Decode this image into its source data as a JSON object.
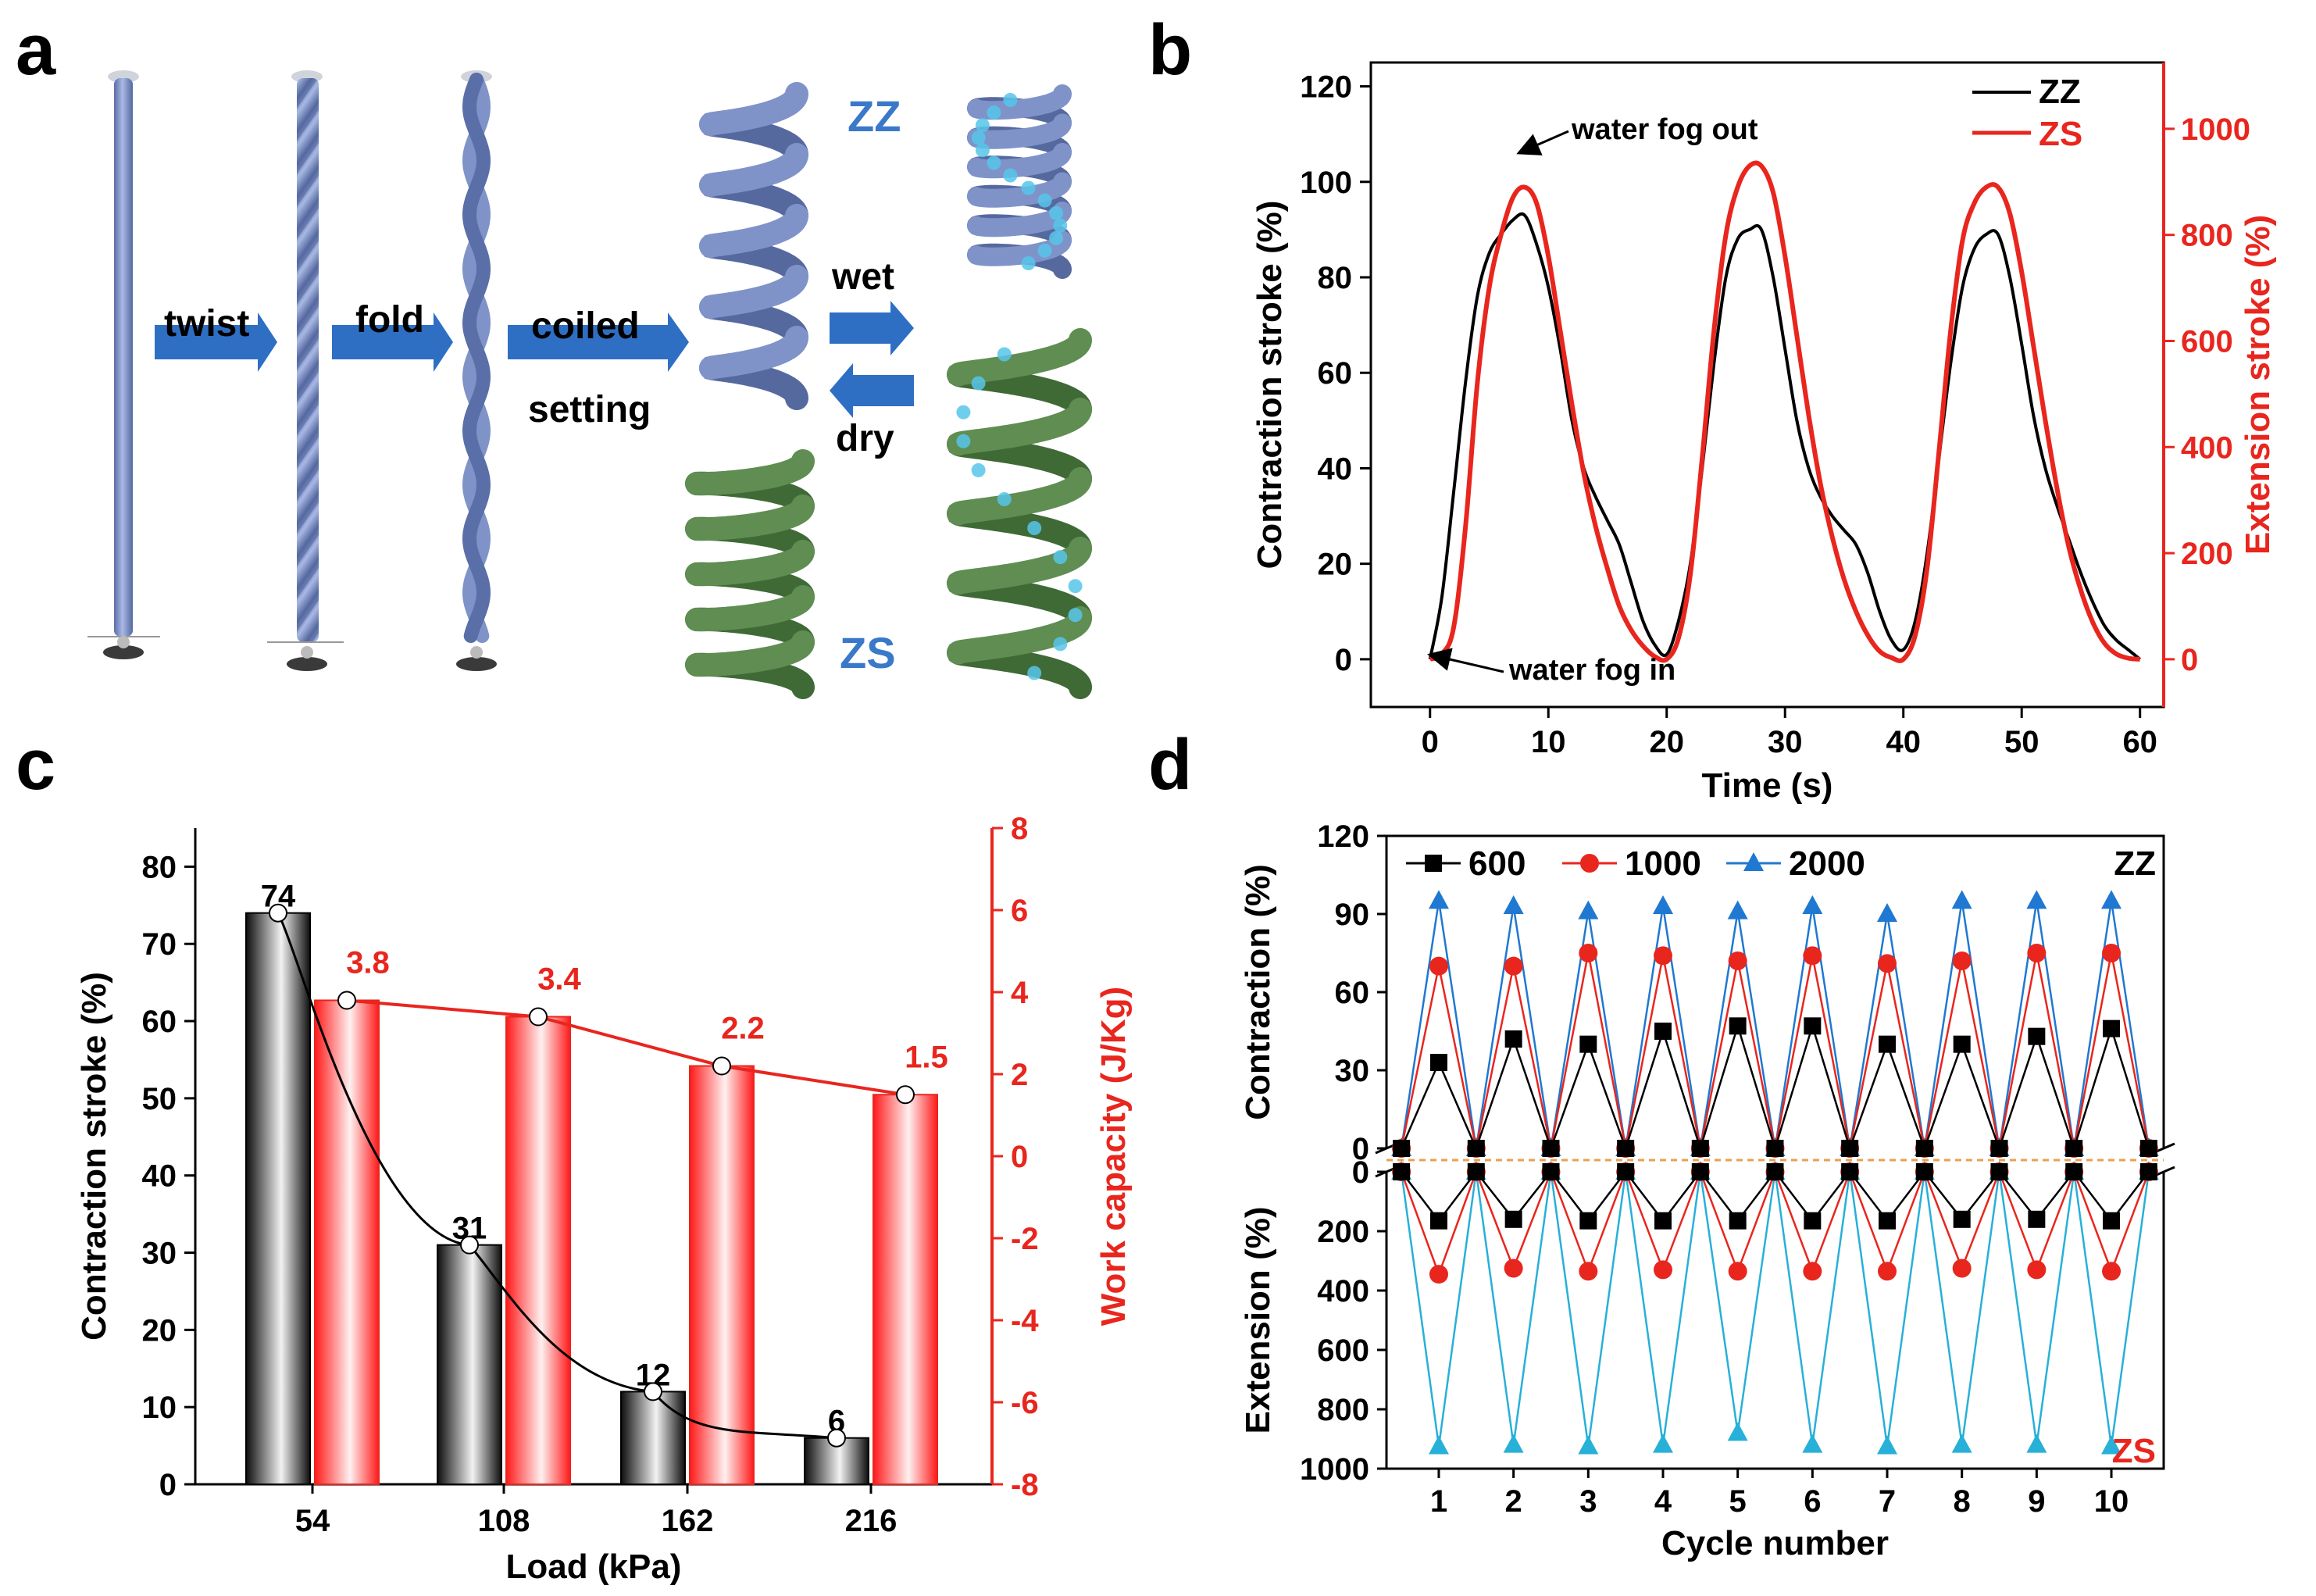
{
  "panel_labels": [
    "a",
    "b",
    "c",
    "d"
  ],
  "schematic": {
    "steps": [
      "twist",
      "fold",
      "coiled",
      "setting"
    ],
    "wet_label": "wet",
    "dry_label": "dry",
    "zz_label": "ZZ",
    "zs_label": "ZS",
    "colors": {
      "fiber": "#7f93c9",
      "zz_coil": "#7f93c9",
      "zs_coil": "#5f8d52",
      "arrow": "#2e6fc4",
      "droplet": "#57c6ea"
    }
  },
  "chart_data": [
    {
      "id": "b",
      "type": "line",
      "xlabel": "Time (s)",
      "ylabel": "Contraction stroke (%)",
      "y2label": "Extension stroke (%)",
      "xlim": [
        -5,
        62
      ],
      "ylim": [
        -10,
        125
      ],
      "y2lim": [
        -90,
        1125
      ],
      "xticks": [
        0,
        10,
        20,
        30,
        40,
        50,
        60
      ],
      "yticks": [
        0,
        20,
        40,
        60,
        80,
        100,
        120
      ],
      "y2ticks": [
        0,
        200,
        400,
        600,
        800,
        1000
      ],
      "annotations": [
        "water fog out",
        "water fog in"
      ],
      "legend_position": "top-right",
      "series": [
        {
          "name": "ZZ",
          "color": "#000000",
          "axis": "left",
          "x": [
            0,
            1,
            2,
            3,
            4,
            5,
            6,
            7,
            8,
            9,
            10,
            11,
            12,
            13,
            14,
            15,
            16,
            17,
            18,
            19,
            20,
            21,
            22,
            23,
            24,
            25,
            26,
            27,
            28,
            29,
            30,
            31,
            32,
            33,
            34,
            35,
            36,
            37,
            38,
            39,
            40,
            41,
            42,
            43,
            44,
            45,
            46,
            47,
            48,
            49,
            50,
            51,
            52,
            53,
            54,
            55,
            56,
            57,
            58,
            59,
            60
          ],
          "y": [
            0,
            13,
            35,
            58,
            76,
            85,
            89,
            92,
            93,
            87,
            78,
            65,
            50,
            40,
            34,
            29,
            24,
            16,
            8,
            3,
            1,
            8,
            20,
            40,
            62,
            80,
            88,
            90,
            90,
            80,
            65,
            50,
            40,
            34,
            30,
            27,
            24,
            18,
            10,
            4,
            2,
            8,
            22,
            42,
            62,
            78,
            86,
            89,
            89,
            80,
            66,
            51,
            40,
            32,
            25,
            18,
            12,
            7,
            4,
            2,
            0
          ]
        },
        {
          "name": "ZS",
          "color": "#e8261e",
          "axis": "right",
          "x": [
            0,
            1,
            2,
            3,
            4,
            5,
            6,
            7,
            8,
            9,
            10,
            11,
            12,
            13,
            14,
            15,
            16,
            17,
            18,
            19,
            20,
            21,
            22,
            23,
            24,
            25,
            26,
            27,
            28,
            29,
            30,
            31,
            32,
            33,
            34,
            35,
            36,
            37,
            38,
            39,
            40,
            41,
            42,
            43,
            44,
            45,
            46,
            47,
            48,
            49,
            50,
            51,
            52,
            53,
            54,
            55,
            56,
            57,
            58,
            59,
            60
          ],
          "y": [
            0,
            10,
            60,
            250,
            520,
            700,
            800,
            870,
            890,
            860,
            760,
            620,
            480,
            350,
            250,
            170,
            100,
            55,
            25,
            5,
            0,
            40,
            160,
            380,
            620,
            800,
            890,
            930,
            930,
            880,
            760,
            610,
            460,
            330,
            230,
            150,
            90,
            45,
            15,
            3,
            0,
            45,
            170,
            390,
            620,
            790,
            860,
            890,
            890,
            840,
            730,
            590,
            450,
            320,
            210,
            130,
            70,
            30,
            10,
            2,
            0
          ]
        }
      ]
    },
    {
      "id": "c",
      "type": "bar",
      "xlabel": "Load (kPa)",
      "ylabel": "Contraction stroke (%)",
      "y2label": "Work capacity (J/Kg)",
      "categories": [
        "54",
        "108",
        "162",
        "216"
      ],
      "ylim": [
        0,
        85
      ],
      "y2lim": [
        -8,
        8
      ],
      "yticks": [
        0,
        10,
        20,
        30,
        40,
        50,
        60,
        70,
        80
      ],
      "y2ticks": [
        -8,
        -6,
        -4,
        -2,
        0,
        2,
        4,
        6,
        8
      ],
      "series": [
        {
          "name": "Contraction stroke",
          "axis": "left",
          "color": "#000000",
          "values": [
            74,
            31,
            12,
            6
          ],
          "labels": [
            "74",
            "31",
            "12",
            "6"
          ]
        },
        {
          "name": "Work capacity",
          "axis": "right",
          "color": "#e8261e",
          "values": [
            3.8,
            3.4,
            2.2,
            1.5
          ],
          "labels": [
            "3.8",
            "3.4",
            "2.2",
            "1.5"
          ]
        }
      ]
    },
    {
      "id": "d",
      "type": "line",
      "xlabel": "Cycle number",
      "ylabel_top": "Contraction (%)",
      "ylabel_bottom": "Extension (%)",
      "xlim": [
        0.3,
        10.7
      ],
      "ylim_top": [
        0,
        120
      ],
      "ylim_bottom": [
        1000,
        0
      ],
      "xticks": [
        1,
        2,
        3,
        4,
        5,
        6,
        7,
        8,
        9,
        10
      ],
      "yticks_top": [
        0,
        30,
        60,
        90,
        120
      ],
      "yticks_bottom": [
        0,
        200,
        400,
        600,
        800,
        1000
      ],
      "tag_top": "ZZ",
      "tag_bottom": "ZS",
      "legend_position": "top",
      "x": [
        0.5,
        1,
        1.5,
        2,
        2.5,
        3,
        3.5,
        4,
        4.5,
        5,
        5.5,
        6,
        6.5,
        7,
        7.5,
        8,
        8.5,
        9,
        9.5,
        10,
        10.5
      ],
      "series_top": [
        {
          "name": "600",
          "color": "#000000",
          "marker": "square",
          "y": [
            0,
            33,
            0,
            42,
            0,
            40,
            0,
            45,
            0,
            47,
            0,
            47,
            0,
            40,
            0,
            40,
            0,
            43,
            0,
            46,
            0
          ]
        },
        {
          "name": "1000",
          "color": "#e8261e",
          "marker": "circle",
          "y": [
            0,
            70,
            0,
            70,
            0,
            75,
            0,
            74,
            0,
            72,
            0,
            74,
            0,
            71,
            0,
            72,
            0,
            75,
            0,
            75,
            0
          ]
        },
        {
          "name": "2000",
          "color": "#1f78d1",
          "marker": "triangle",
          "y": [
            0,
            95,
            0,
            93,
            0,
            91,
            0,
            93,
            0,
            91,
            0,
            93,
            0,
            90,
            0,
            95,
            0,
            95,
            0,
            95,
            0
          ]
        }
      ],
      "series_bottom": [
        {
          "name": "600",
          "color": "#000000",
          "marker": "square",
          "y": [
            0,
            165,
            0,
            160,
            0,
            165,
            0,
            165,
            0,
            165,
            0,
            165,
            0,
            165,
            0,
            160,
            0,
            160,
            0,
            165,
            0
          ]
        },
        {
          "name": "1000",
          "color": "#e8261e",
          "marker": "circle",
          "y": [
            0,
            345,
            0,
            325,
            0,
            335,
            0,
            330,
            0,
            335,
            0,
            335,
            0,
            335,
            0,
            325,
            0,
            330,
            0,
            335,
            0
          ]
        },
        {
          "name": "2000",
          "color": "#27b0d8",
          "marker": "triangle",
          "y": [
            0,
            925,
            0,
            920,
            0,
            925,
            0,
            920,
            0,
            880,
            0,
            920,
            0,
            925,
            0,
            920,
            0,
            920,
            0,
            925,
            0
          ]
        }
      ]
    }
  ]
}
